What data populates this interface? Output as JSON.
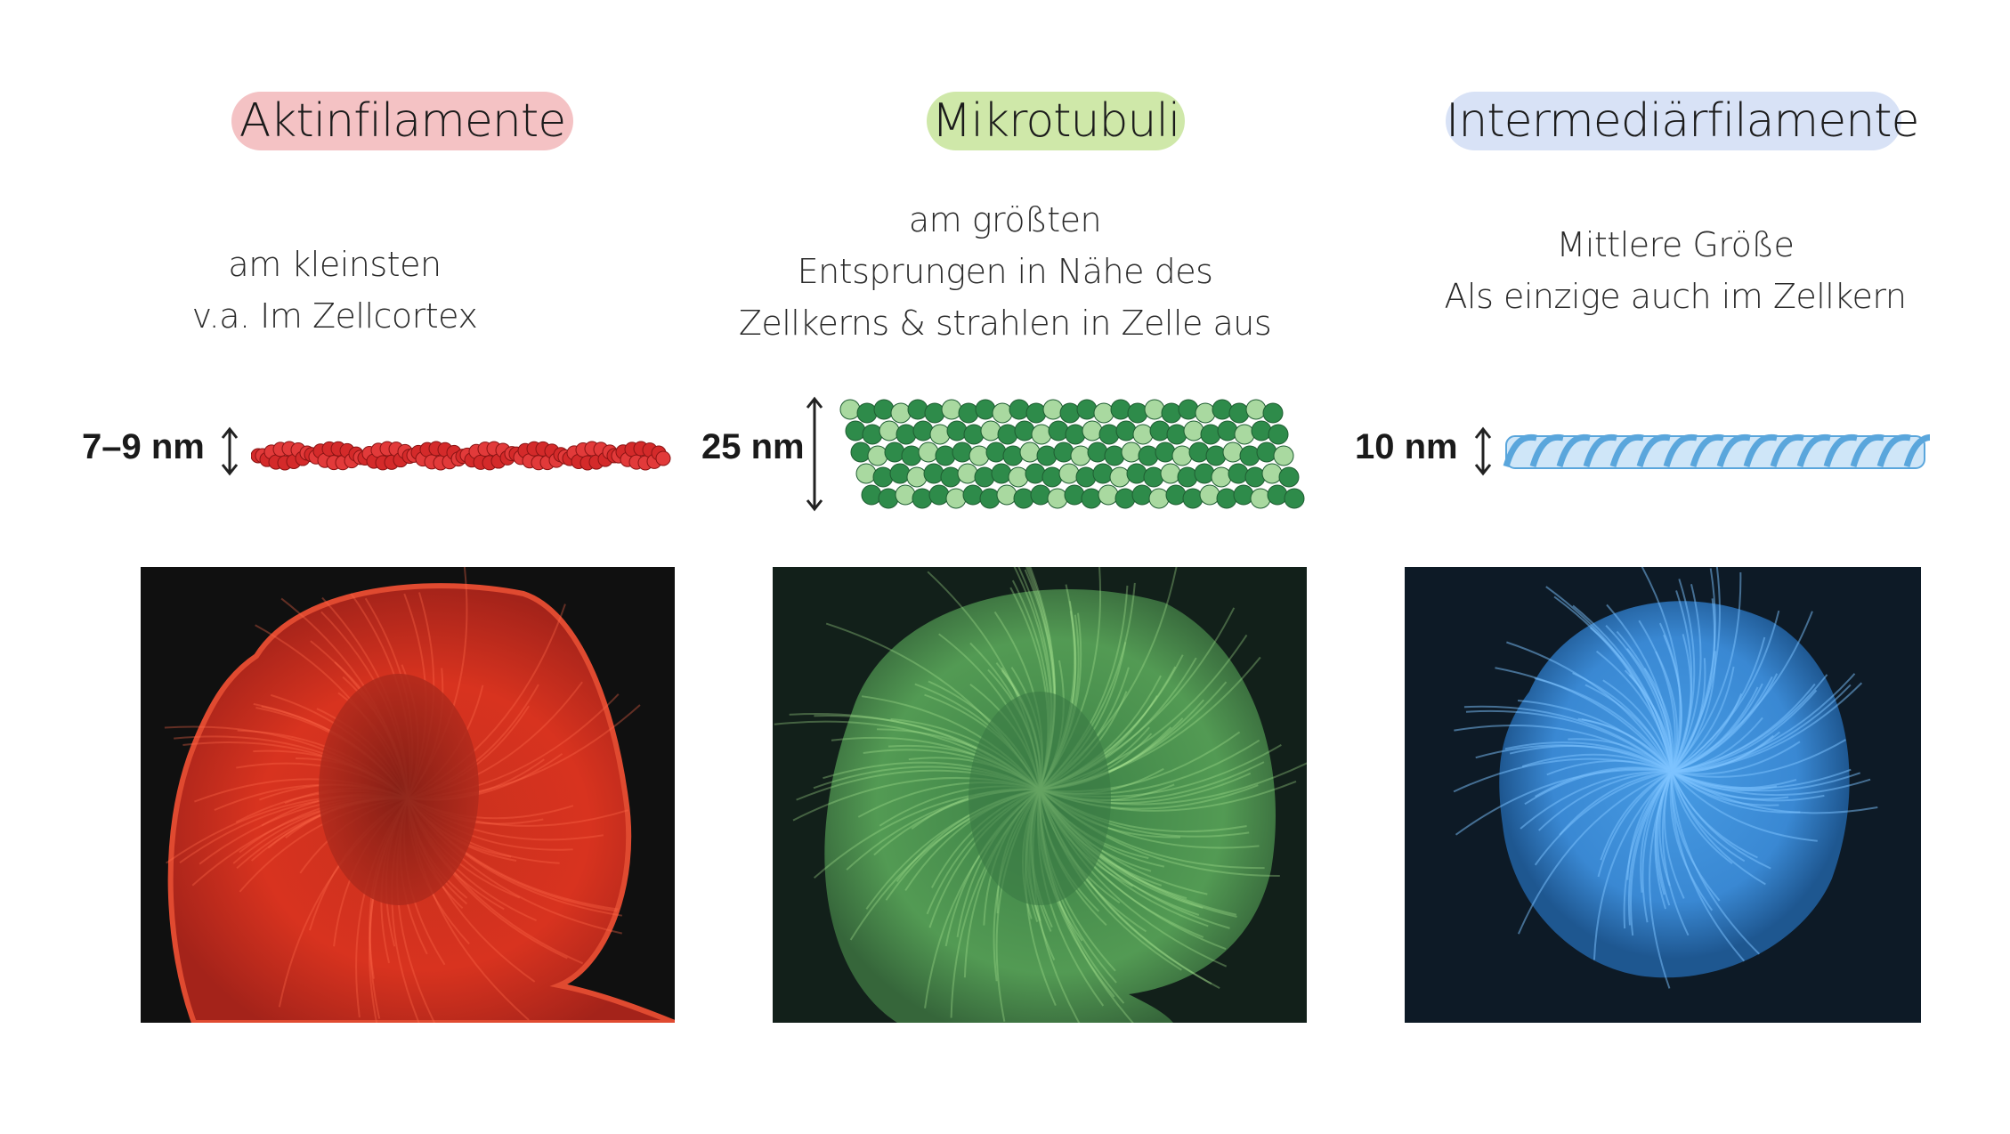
{
  "columns": [
    {
      "title": "Aktinfilamente",
      "pill_color": "#f4c2c4",
      "desc_lines": [
        "am kleinsten",
        "v.a. Im Zellcortex"
      ],
      "size_label": "7–9 nm",
      "icon": "double-arrow-icon",
      "filament_color": "#d42a2a"
    },
    {
      "title": "Mikrotubuli",
      "pill_color": "#cfe8a9",
      "desc_lines": [
        "am größten",
        "Entsprungen in Nähe des",
        "Zellkerns & strahlen in Zelle aus"
      ],
      "size_label": "25 nm",
      "icon": "double-arrow-icon",
      "filament_color": "#2e8b4a"
    },
    {
      "title": "Intermediärfilamente",
      "pill_color": "#d8e2f6",
      "desc_lines": [
        "Mittlere Größe",
        "Als einzige auch im Zellkern"
      ],
      "size_label": "10 nm",
      "icon": "double-arrow-icon",
      "filament_color": "#5aa6dc"
    }
  ]
}
